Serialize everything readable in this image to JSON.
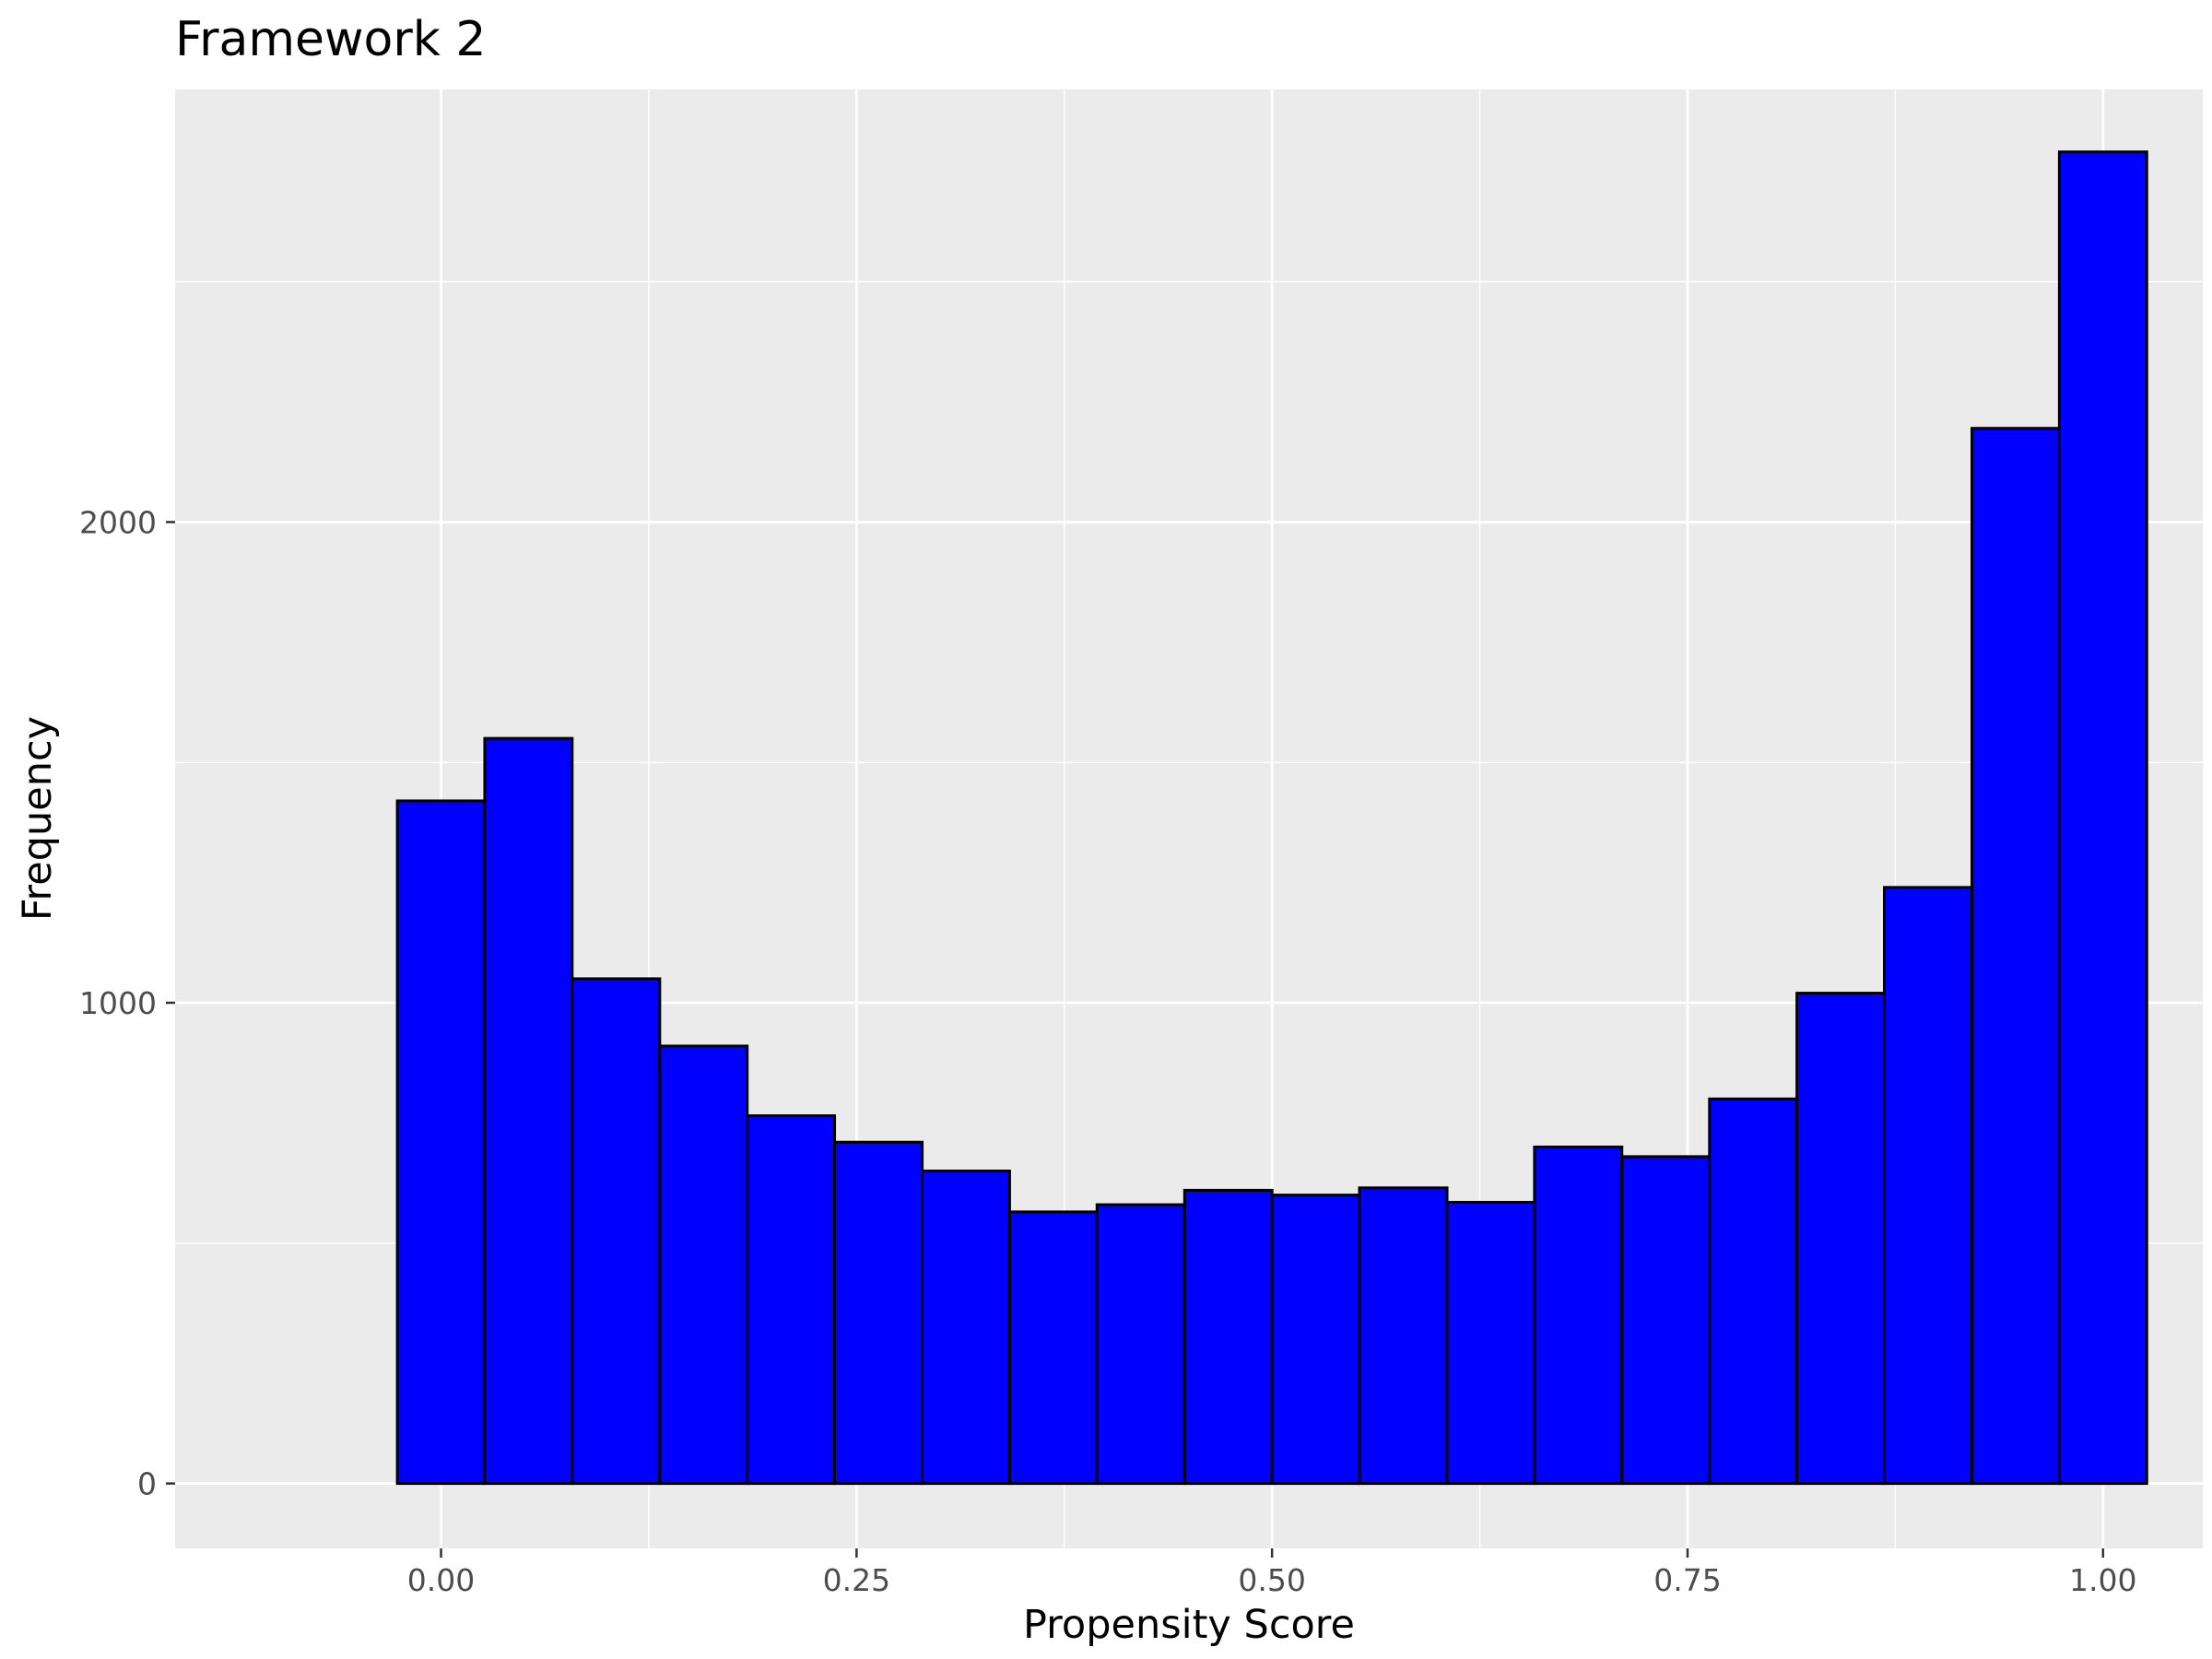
{
  "chart_data": {
    "type": "bar",
    "title": "Framework 2",
    "xlabel": "Propensity Score",
    "ylabel": "Frequency",
    "xlim": [
      -0.16,
      1.06
    ],
    "ylim": [
      -135,
      2900
    ],
    "x_ticks": [
      {
        "value": 0.0,
        "label": "0.00"
      },
      {
        "value": 0.25,
        "label": "0.25"
      },
      {
        "value": 0.5,
        "label": "0.50"
      },
      {
        "value": 0.75,
        "label": "0.75"
      },
      {
        "value": 1.0,
        "label": "1.00"
      }
    ],
    "y_ticks": [
      {
        "value": 0,
        "label": "0"
      },
      {
        "value": 1000,
        "label": "1000"
      },
      {
        "value": 2000,
        "label": "2000"
      }
    ],
    "grid": true,
    "bin_edges": [
      -0.0263,
      0.0263,
      0.0789,
      0.1316,
      0.1842,
      0.2368,
      0.2895,
      0.3421,
      0.3947,
      0.4474,
      0.5,
      0.5526,
      0.6053,
      0.6579,
      0.7105,
      0.7632,
      0.8158,
      0.8684,
      0.9211,
      0.9737,
      1.0263
    ],
    "values": [
      1420,
      1550,
      1050,
      910,
      765,
      710,
      650,
      565,
      580,
      610,
      600,
      615,
      585,
      700,
      680,
      800,
      1020,
      1240,
      2195,
      2770
    ],
    "colors": {
      "bar_fill": "#0000ff",
      "bar_stroke": "#000000",
      "panel_background": "#ebebeb",
      "grid": "#ffffff"
    }
  }
}
